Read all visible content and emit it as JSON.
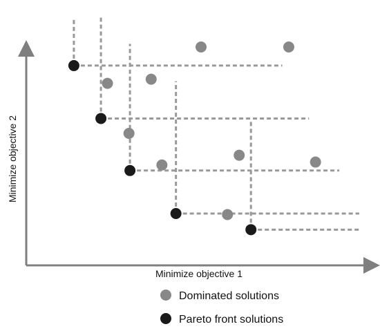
{
  "chart_data": {
    "type": "scatter",
    "title": "",
    "xlabel": "Minimize objective 1",
    "ylabel": "Minimize objective 2",
    "xlim": [
      0,
      1
    ],
    "ylim": [
      0,
      1
    ],
    "grid": false,
    "legend_position": "bottom-center",
    "series": [
      {
        "name": "Dominated solutions",
        "color": "#888888",
        "points": [
          {
            "x": 0.536,
            "y": 1.0
          },
          {
            "x": 0.805,
            "y": 1.0
          },
          {
            "x": 0.249,
            "y": 0.824
          },
          {
            "x": 0.383,
            "y": 0.844
          },
          {
            "x": 0.315,
            "y": 0.582
          },
          {
            "x": 0.653,
            "y": 0.476
          },
          {
            "x": 0.416,
            "y": 0.429
          },
          {
            "x": 0.887,
            "y": 0.443
          },
          {
            "x": 0.617,
            "y": 0.189
          }
        ]
      },
      {
        "name": "Pareto front solutions",
        "color": "#1a1a1a",
        "points": [
          {
            "x": 0.146,
            "y": 0.91
          },
          {
            "x": 0.229,
            "y": 0.654
          },
          {
            "x": 0.318,
            "y": 0.402
          },
          {
            "x": 0.459,
            "y": 0.194
          },
          {
            "x": 0.689,
            "y": 0.116
          }
        ]
      }
    ],
    "dominance_lines": [
      {
        "x": 0.146,
        "y": 0.91,
        "y_top": 1.139,
        "x_right": 0.785
      },
      {
        "x": 0.229,
        "y": 0.654,
        "y_top": 1.155,
        "x_right": 0.867
      },
      {
        "x": 0.318,
        "y": 0.402,
        "y_top": 1.015,
        "x_right": 0.96
      },
      {
        "x": 0.459,
        "y": 0.194,
        "y_top": 0.834,
        "x_right": 1.021
      },
      {
        "x": 0.689,
        "y": 0.116,
        "y_top": 0.639,
        "x_right": 1.021
      }
    ]
  }
}
